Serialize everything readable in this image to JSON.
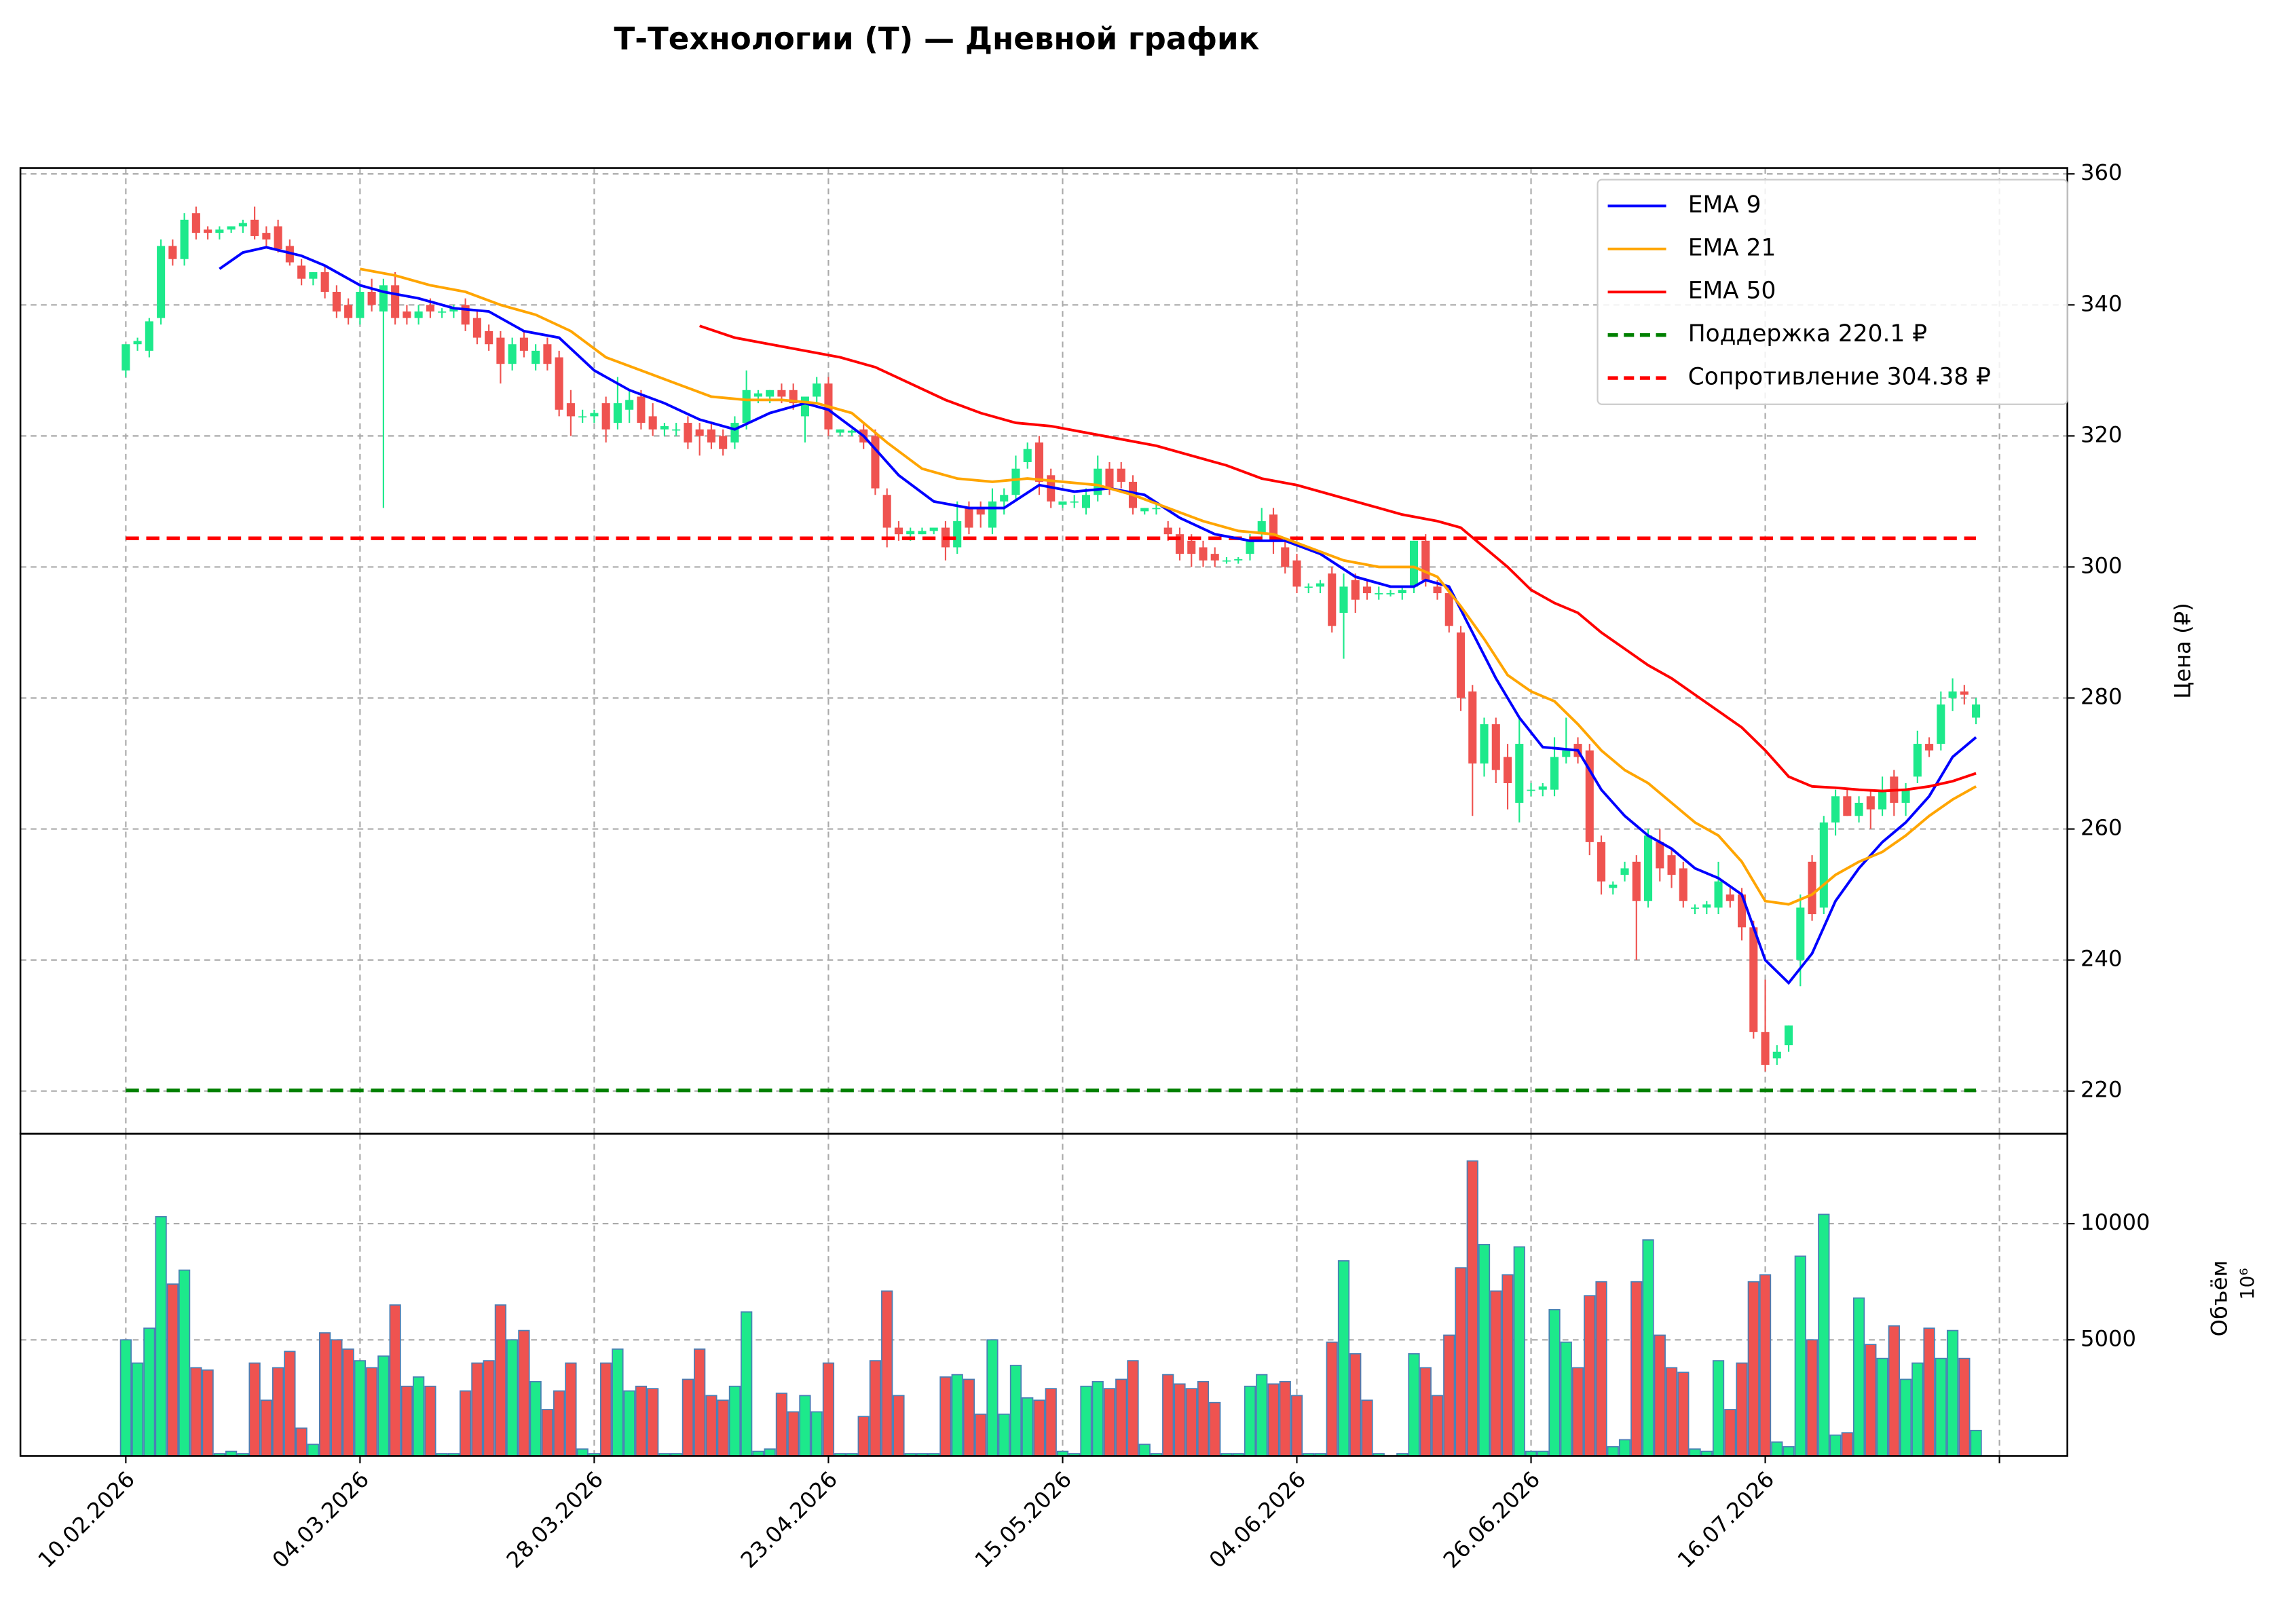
{
  "chart_data": {
    "type": "candlestick",
    "title": "Т-Технологии (T) — Дневной график",
    "ylabel": "Цена (₽)",
    "volume_label": "Объём",
    "volume_offset": "10⁶",
    "up_color": "#1de98b",
    "down_color": "#ef5350",
    "volume_edge": "#4a7fb5",
    "legend": "upper right",
    "grid": true,
    "xlim": [
      -9,
      165.8
    ],
    "xticks": [
      {
        "value": 0,
        "label": "10.02.2026"
      },
      {
        "value": 20,
        "label": "04.03.2026"
      },
      {
        "value": 40,
        "label": "28.03.2026"
      },
      {
        "value": 60,
        "label": "23.04.2026"
      },
      {
        "value": 80,
        "label": "15.05.2026"
      },
      {
        "value": 100,
        "label": "04.06.2026"
      },
      {
        "value": 120,
        "label": "26.06.2026"
      },
      {
        "value": 140,
        "label": "16.07.2026"
      },
      {
        "value": 160,
        "label": null
      }
    ],
    "ylim": [
      213.5,
      360.9
    ],
    "yticks": [
      220,
      240,
      260,
      280,
      300,
      320,
      340,
      360
    ],
    "vlim": [
      0,
      13875
    ],
    "vticks": [
      5000,
      10000
    ],
    "candles": [
      [
        330,
        334,
        329,
        334,
        5000
      ],
      [
        334,
        335,
        333,
        334.5,
        4000
      ],
      [
        333,
        338,
        332,
        337.5,
        5500
      ],
      [
        338,
        350,
        337,
        349,
        10300
      ],
      [
        349,
        350,
        346,
        347,
        7400
      ],
      [
        347,
        354,
        346,
        353,
        8000
      ],
      [
        354,
        355,
        350,
        351,
        3800
      ],
      [
        351.5,
        352,
        350,
        351,
        3700
      ],
      [
        351,
        352,
        350,
        351.5,
        100
      ],
      [
        351.5,
        352,
        351,
        352,
        200
      ],
      [
        352,
        353,
        351,
        352.5,
        100
      ],
      [
        353,
        355,
        350,
        350.5,
        4000
      ],
      [
        351,
        352,
        349,
        350,
        2400
      ],
      [
        352,
        353,
        348,
        348.5,
        3800
      ],
      [
        349,
        350,
        346,
        346.5,
        4500
      ],
      [
        346,
        347,
        343,
        344,
        1200
      ],
      [
        344,
        345,
        343,
        345,
        500
      ],
      [
        345,
        346,
        341,
        342,
        5300
      ],
      [
        342,
        343,
        338,
        339,
        5000
      ],
      [
        340,
        341,
        337,
        338,
        4600
      ],
      [
        338,
        343,
        337,
        342,
        4100
      ],
      [
        342,
        344,
        339,
        340,
        3800
      ],
      [
        339,
        344,
        309,
        343,
        4300
      ],
      [
        343,
        345,
        337,
        338,
        6500
      ],
      [
        339,
        340,
        337,
        338,
        3000
      ],
      [
        338,
        340,
        337,
        339,
        3400
      ],
      [
        340,
        341,
        338,
        339,
        3000
      ],
      [
        339,
        339.5,
        338,
        339,
        100
      ],
      [
        339,
        340,
        338,
        339.5,
        100
      ],
      [
        340,
        341,
        336,
        337,
        2800
      ],
      [
        338,
        339,
        334,
        335,
        4000
      ],
      [
        336,
        337,
        333,
        334,
        4100
      ],
      [
        335,
        336,
        328,
        331,
        6500
      ],
      [
        331,
        335,
        330,
        334,
        5000
      ],
      [
        335,
        336,
        332,
        333,
        5400
      ],
      [
        331,
        334,
        330,
        333,
        3200
      ],
      [
        334,
        335,
        330,
        331,
        2000
      ],
      [
        332,
        333,
        323,
        324,
        2800
      ],
      [
        325,
        327,
        320,
        323,
        4000
      ],
      [
        323,
        324,
        322,
        323,
        300
      ],
      [
        323,
        324,
        322,
        323.5,
        100
      ],
      [
        325,
        326,
        319,
        321,
        4000
      ],
      [
        322,
        329,
        321,
        325,
        4600
      ],
      [
        324,
        327,
        322,
        325.5,
        2800
      ],
      [
        326,
        327,
        321,
        322,
        3000
      ],
      [
        323,
        325,
        320,
        321,
        2900
      ],
      [
        321,
        322,
        320,
        321.5,
        100
      ],
      [
        321,
        322,
        320,
        321,
        100
      ],
      [
        322,
        323,
        318,
        319,
        3300
      ],
      [
        321,
        322,
        317,
        320,
        4600
      ],
      [
        321,
        322,
        318,
        319,
        2600
      ],
      [
        320,
        321,
        317,
        318,
        2400
      ],
      [
        319,
        323,
        318,
        322,
        3000
      ],
      [
        322,
        330,
        321,
        327,
        6200
      ],
      [
        326,
        327,
        325,
        326.5,
        200
      ],
      [
        326,
        327,
        325,
        327,
        300
      ],
      [
        327,
        328,
        325,
        326,
        2700
      ],
      [
        327,
        328,
        324,
        325,
        1900
      ],
      [
        323,
        326,
        319,
        326,
        2600
      ],
      [
        326,
        329,
        325,
        328,
        1900
      ],
      [
        328,
        329,
        320,
        321,
        4000
      ],
      [
        320.5,
        321,
        320,
        321,
        100
      ],
      [
        320.5,
        321,
        320,
        320.8,
        100
      ],
      [
        321,
        322,
        318,
        319,
        1700
      ],
      [
        320,
        321,
        311,
        312,
        4100
      ],
      [
        311,
        312,
        303,
        306,
        7100
      ],
      [
        306,
        307,
        304,
        305,
        2600
      ],
      [
        305,
        306,
        304,
        305.5,
        100
      ],
      [
        305,
        306,
        305,
        305.5,
        100
      ],
      [
        305.5,
        306,
        305,
        306,
        100
      ],
      [
        306,
        307,
        301,
        303,
        3400
      ],
      [
        303,
        310,
        302,
        307,
        3500
      ],
      [
        309,
        310,
        305,
        306,
        3300
      ],
      [
        309,
        310,
        306,
        308,
        1800
      ],
      [
        306,
        312,
        305,
        310,
        5000
      ],
      [
        310,
        312,
        308,
        311,
        1800
      ],
      [
        311,
        317,
        310,
        315,
        3900
      ],
      [
        316,
        319,
        315,
        318,
        2500
      ],
      [
        319,
        320,
        311,
        313,
        2400
      ],
      [
        314,
        315,
        309,
        310,
        2900
      ],
      [
        309.5,
        310,
        309,
        310,
        200
      ],
      [
        310,
        311,
        309,
        310,
        100
      ],
      [
        309,
        312,
        308,
        311,
        3000
      ],
      [
        311,
        317,
        310,
        315,
        3200
      ],
      [
        315,
        316,
        311,
        312,
        2900
      ],
      [
        315,
        316,
        312,
        313,
        3300
      ],
      [
        313,
        314,
        308,
        309,
        4100
      ],
      [
        308.5,
        309,
        308,
        309,
        500
      ],
      [
        309,
        309.5,
        308,
        309,
        100
      ],
      [
        306,
        307,
        304,
        305,
        3500
      ],
      [
        305,
        306,
        301,
        302,
        3100
      ],
      [
        304,
        305,
        300,
        302,
        2900
      ],
      [
        303,
        304,
        300,
        301,
        3200
      ],
      [
        302,
        303,
        300,
        301,
        2300
      ],
      [
        301,
        301.5,
        300.5,
        301,
        100
      ],
      [
        301,
        301.5,
        300.5,
        301.2,
        100
      ],
      [
        302,
        305,
        301,
        304,
        3000
      ],
      [
        305,
        309,
        304,
        307,
        3500
      ],
      [
        308,
        309,
        302,
        304,
        3100
      ],
      [
        303,
        304,
        299,
        300,
        3200
      ],
      [
        301,
        302,
        296,
        297,
        2600
      ],
      [
        297,
        297.5,
        296,
        297,
        100
      ],
      [
        297,
        298,
        296,
        297.5,
        100
      ],
      [
        299,
        300,
        290,
        291,
        4900
      ],
      [
        293,
        299,
        286,
        297,
        8400
      ],
      [
        298,
        299,
        293,
        295,
        4400
      ],
      [
        297,
        298,
        295,
        296,
        2400
      ],
      [
        296,
        297,
        295,
        296,
        100
      ],
      [
        296,
        296.5,
        295.5,
        296,
        0
      ],
      [
        296,
        297,
        295,
        296.5,
        100
      ],
      [
        297,
        304,
        296,
        304,
        4400
      ],
      [
        304,
        305,
        297,
        298,
        3800
      ],
      [
        297,
        298,
        295,
        296,
        2600
      ],
      [
        296,
        297,
        290,
        291,
        5200
      ],
      [
        290,
        291,
        278,
        280,
        8100
      ],
      [
        281,
        282,
        262,
        270,
        12700
      ],
      [
        270,
        277,
        268,
        276,
        9100
      ],
      [
        276,
        277,
        267,
        269,
        7100
      ],
      [
        271,
        273,
        263,
        267,
        7800
      ],
      [
        264,
        277,
        261,
        273,
        9000
      ],
      [
        266,
        267,
        265,
        266,
        200
      ],
      [
        266,
        267,
        265,
        266.5,
        200
      ],
      [
        266,
        274,
        265,
        271,
        6300
      ],
      [
        271,
        277,
        270,
        272,
        4900
      ],
      [
        273,
        274,
        270,
        271,
        3800
      ],
      [
        272,
        273,
        256,
        258,
        6900
      ],
      [
        258,
        259,
        250,
        252,
        7500
      ],
      [
        251,
        252,
        250,
        251.5,
        400
      ],
      [
        253,
        255,
        252,
        254,
        700
      ],
      [
        255,
        256,
        240,
        249,
        7500
      ],
      [
        249,
        260,
        248,
        259,
        9300
      ],
      [
        258,
        260,
        252,
        254,
        5200
      ],
      [
        256,
        257,
        251,
        253,
        3800
      ],
      [
        254,
        255,
        248,
        249,
        3600
      ],
      [
        248,
        248.5,
        247,
        248,
        300
      ],
      [
        248,
        249,
        247,
        248.5,
        200
      ],
      [
        248,
        255,
        247,
        252,
        4100
      ],
      [
        250,
        251,
        248,
        249,
        2000
      ],
      [
        250,
        251,
        243,
        245,
        4000
      ],
      [
        245,
        246,
        228,
        229,
        7500
      ],
      [
        229,
        237,
        223,
        224,
        7800
      ],
      [
        225,
        227,
        224,
        226,
        600
      ],
      [
        227,
        230,
        226,
        230,
        400
      ],
      [
        240,
        250,
        236,
        248,
        8600
      ],
      [
        255,
        256,
        246,
        247,
        5000
      ],
      [
        248,
        262,
        247,
        261,
        10400
      ],
      [
        261,
        266,
        259,
        265,
        900
      ],
      [
        265,
        266,
        262,
        262,
        1000
      ],
      [
        262,
        265,
        261,
        264,
        6800
      ],
      [
        265,
        266,
        260,
        263,
        4800
      ],
      [
        263,
        268,
        262,
        266,
        4200
      ],
      [
        268,
        269,
        262,
        264,
        5600
      ],
      [
        264,
        267,
        262,
        266,
        3300
      ],
      [
        268,
        275,
        267,
        273,
        4000
      ],
      [
        273,
        274,
        271,
        272,
        5500
      ],
      [
        273,
        281,
        272,
        279,
        4200
      ],
      [
        280,
        283,
        278,
        281,
        5400
      ],
      [
        281,
        282,
        279,
        280.5,
        4200
      ],
      [
        277,
        280,
        276,
        279,
        1100
      ]
    ],
    "series": [
      {
        "name": "EMA 9",
        "color": "#0000ff",
        "x": [
          8,
          10,
          12,
          15,
          17,
          20,
          22,
          25,
          28,
          31,
          34,
          37,
          40,
          43,
          46,
          49,
          52,
          55,
          58,
          60,
          63,
          66,
          69,
          72,
          75,
          78,
          81,
          84,
          87,
          90,
          93,
          96,
          99,
          102,
          105,
          108,
          110,
          111,
          113,
          115,
          117,
          119,
          121,
          124,
          126,
          128,
          130,
          132,
          134,
          136,
          138,
          140,
          142,
          144,
          146,
          148,
          150,
          152,
          154,
          156,
          158
        ],
        "values": [
          345.5,
          348,
          348.8,
          347.5,
          346,
          343,
          342,
          341,
          339.5,
          339,
          336,
          335,
          330,
          327,
          325,
          322.5,
          321,
          323.5,
          325,
          324,
          320,
          314,
          310,
          309,
          309,
          312.5,
          311.5,
          312,
          311,
          307.5,
          305,
          304,
          304,
          302,
          298.5,
          297,
          297,
          298,
          297,
          290,
          283,
          277,
          272.5,
          272,
          266,
          262,
          259,
          257,
          254,
          252.5,
          250,
          240,
          236.5,
          241,
          249,
          254,
          258,
          261,
          265,
          271,
          274
        ]
      },
      {
        "name": "EMA 21",
        "color": "#ffa500",
        "x": [
          20,
          23,
          26,
          29,
          32,
          35,
          38,
          41,
          44,
          47,
          50,
          53,
          56,
          59,
          62,
          65,
          68,
          71,
          74,
          77,
          80,
          83,
          86,
          89,
          92,
          95,
          98,
          101,
          104,
          107,
          110,
          112,
          114,
          116,
          118,
          120,
          122,
          124,
          126,
          128,
          130,
          132,
          134,
          136,
          138,
          140,
          142,
          144,
          146,
          148,
          150,
          152,
          154,
          156,
          158
        ],
        "values": [
          345.5,
          344.5,
          343,
          342,
          340,
          338.5,
          336,
          332,
          330,
          328,
          326,
          325.5,
          325.5,
          325,
          323.5,
          319,
          315,
          313.5,
          313,
          313.5,
          313,
          312.5,
          311,
          309,
          307,
          305.5,
          305,
          303,
          301,
          300,
          300,
          298.5,
          294,
          289,
          283.5,
          281,
          279.5,
          276,
          272,
          269,
          267,
          264,
          261,
          259,
          255,
          249,
          248.5,
          250,
          253,
          255,
          256.5,
          259,
          262,
          264.5,
          266.5
        ]
      },
      {
        "name": "EMA 50",
        "color": "#ff0000",
        "x": [
          49,
          52,
          55,
          58,
          61,
          64,
          67,
          70,
          73,
          76,
          79,
          82,
          85,
          88,
          91,
          94,
          97,
          100,
          103,
          106,
          109,
          112,
          114,
          116,
          118,
          120,
          122,
          124,
          126,
          128,
          130,
          132,
          134,
          136,
          138,
          140,
          142,
          144,
          146,
          148,
          150,
          152,
          154,
          156,
          158
        ],
        "values": [
          336.8,
          335,
          334,
          333,
          332,
          330.5,
          328,
          325.5,
          323.5,
          322,
          321.5,
          320.5,
          319.5,
          318.5,
          317,
          315.5,
          313.5,
          312.5,
          311,
          309.5,
          308,
          307,
          306,
          303,
          300,
          296.5,
          294.5,
          293,
          290,
          287.5,
          285,
          283,
          280.5,
          278,
          275.5,
          272,
          268,
          266.5,
          266.3,
          266,
          265.8,
          266,
          266.5,
          267.3,
          268.5
        ]
      }
    ],
    "levels": [
      {
        "name": "Поддержка 220.1 ₽",
        "value": 220.1,
        "color": "#008000"
      },
      {
        "name": "Сопротивление 304.38 ₽",
        "value": 304.38,
        "color": "#ff0000"
      }
    ]
  }
}
